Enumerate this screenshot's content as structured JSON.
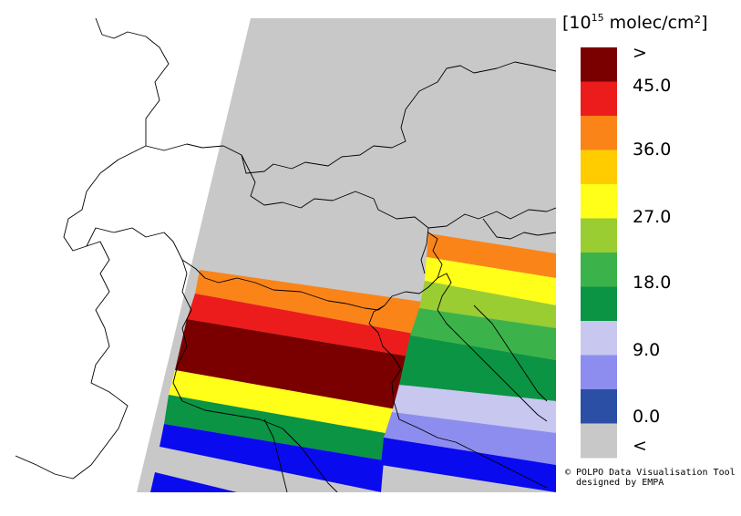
{
  "unit": {
    "prefix": "[10",
    "exponent": "15",
    "suffix": " molec/cm²]"
  },
  "colorbar": {
    "swatches": [
      "#7a0000",
      "#ec1c1c",
      "#fb8419",
      "#ffcc00",
      "#ffff19",
      "#9acd32",
      "#3cb34a",
      "#0b9444",
      "#c7c7f0",
      "#8d8df0",
      "#2c4fa6",
      "#c8c8c8"
    ],
    "labels": [
      ">",
      "45.0",
      "36.0",
      "27.0",
      "18.0",
      "9.0",
      "0.0",
      "<"
    ]
  },
  "credits": {
    "line1": "© POLPO Data Visualisation Tool",
    "line2": "designed by EMPA"
  },
  "colors": {
    "nodata": "#c8c8c8",
    "background": "#ffffff",
    "border": "#000000"
  }
}
